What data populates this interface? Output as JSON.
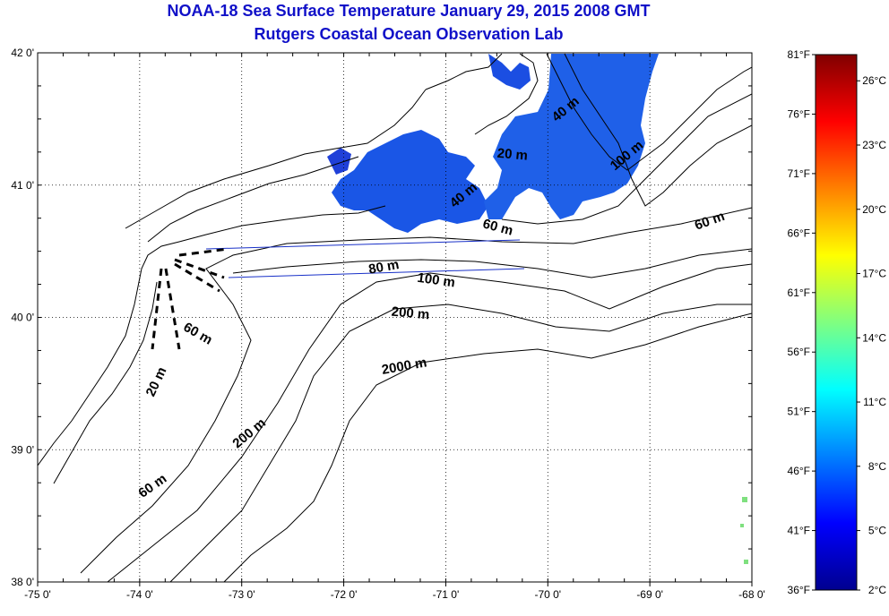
{
  "title": {
    "line1": "NOAA-18 Sea Surface Temperature January 29, 2015 2008 GMT",
    "line2": "Rutgers Coastal Ocean Observation Lab"
  },
  "map": {
    "lon_range": [
      -75,
      -68
    ],
    "lat_range": [
      38,
      42
    ],
    "x_ticks": [
      {
        "value": -75,
        "label": "-75 0'"
      },
      {
        "value": -74,
        "label": "-74 0'"
      },
      {
        "value": -73,
        "label": "-73 0'"
      },
      {
        "value": -72,
        "label": "-72 0'"
      },
      {
        "value": -71,
        "label": "-71 0'"
      },
      {
        "value": -70,
        "label": "-70 0'"
      },
      {
        "value": -69,
        "label": "-69 0'"
      },
      {
        "value": -68,
        "label": "-68 0'"
      }
    ],
    "y_ticks": [
      {
        "value": 38,
        "label": "38 0'"
      },
      {
        "value": 39,
        "label": "39 0'"
      },
      {
        "value": 40,
        "label": "40 0'"
      },
      {
        "value": 41,
        "label": "41 0'"
      },
      {
        "value": 42,
        "label": "42 0'"
      }
    ],
    "contour_labels": [
      {
        "text": "20 m",
        "lon": -73.8,
        "lat": 39.5,
        "rotate": -65
      },
      {
        "text": "60 m",
        "lon": -73.45,
        "lat": 39.85,
        "rotate": 30
      },
      {
        "text": "60 m",
        "lon": -73.85,
        "lat": 38.7,
        "rotate": -35
      },
      {
        "text": "200 m",
        "lon": -72.9,
        "lat": 39.1,
        "rotate": -40
      },
      {
        "text": "80 m",
        "lon": -71.6,
        "lat": 40.35,
        "rotate": -10
      },
      {
        "text": "100 m",
        "lon": -71.1,
        "lat": 40.25,
        "rotate": 8
      },
      {
        "text": "200 m",
        "lon": -71.35,
        "lat": 40.0,
        "rotate": 5
      },
      {
        "text": "2000 m",
        "lon": -71.4,
        "lat": 39.6,
        "rotate": -10
      },
      {
        "text": "60 m",
        "lon": -70.5,
        "lat": 40.65,
        "rotate": 15
      },
      {
        "text": "40 m",
        "lon": -70.8,
        "lat": 40.9,
        "rotate": -40
      },
      {
        "text": "20 m",
        "lon": -70.35,
        "lat": 41.2,
        "rotate": 5
      },
      {
        "text": "40 m",
        "lon": -69.8,
        "lat": 41.55,
        "rotate": -40
      },
      {
        "text": "100 m",
        "lon": -69.2,
        "lat": 41.2,
        "rotate": -40
      },
      {
        "text": "60 m",
        "lon": -68.4,
        "lat": 40.7,
        "rotate": -20
      }
    ],
    "sst_patches": [
      {
        "name": "nantucket-shoals-patch",
        "color": "#1a56e6"
      },
      {
        "name": "georges-bank-patch",
        "color": "#1f60e8"
      },
      {
        "name": "cape-cod-bay-patch",
        "color": "#1b4ee2"
      }
    ]
  },
  "colorbar": {
    "range_f": [
      36,
      81
    ],
    "fahrenheit_labels": [
      {
        "value": 81,
        "label": "81°F"
      },
      {
        "value": 76,
        "label": "76°F"
      },
      {
        "value": 71,
        "label": "71°F"
      },
      {
        "value": 66,
        "label": "66°F"
      },
      {
        "value": 61,
        "label": "61°F"
      },
      {
        "value": 56,
        "label": "56°F"
      },
      {
        "value": 51,
        "label": "51°F"
      },
      {
        "value": 46,
        "label": "46°F"
      },
      {
        "value": 41,
        "label": "41°F"
      },
      {
        "value": 36,
        "label": "36°F"
      }
    ],
    "celsius_labels": [
      {
        "value_f": 78.8,
        "label": "26°C"
      },
      {
        "value_f": 73.4,
        "label": "23°C"
      },
      {
        "value_f": 68.0,
        "label": "20°C"
      },
      {
        "value_f": 62.6,
        "label": "17°C"
      },
      {
        "value_f": 57.2,
        "label": "14°C"
      },
      {
        "value_f": 51.8,
        "label": "11°C"
      },
      {
        "value_f": 46.4,
        "label": "8°C"
      },
      {
        "value_f": 41.0,
        "label": "5°C"
      },
      {
        "value_f": 36.0,
        "label": "2°C"
      }
    ],
    "gradient": [
      "#00008f",
      "#0000ff",
      "#0080ff",
      "#00ffff",
      "#80ff80",
      "#ffff00",
      "#ff8000",
      "#ff0000",
      "#800000"
    ]
  }
}
